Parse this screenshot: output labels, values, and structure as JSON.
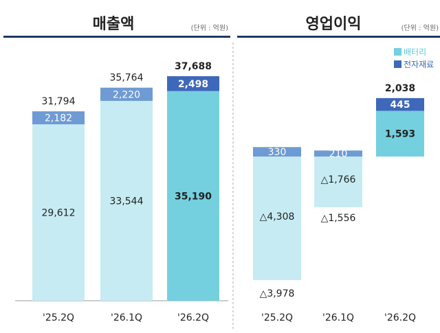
{
  "colors": {
    "battery_light": "#c6ebf3",
    "battery_highlight": "#74d0de",
    "materials_light": "#6e9bd4",
    "materials_dark": "#3e68b9",
    "title_rule": "#1f3864",
    "axis": "#999999",
    "divider": "#aaaaaa",
    "text": "#222222"
  },
  "legend": {
    "battery": "배터리",
    "materials": "전자재료"
  },
  "chart_data": [
    {
      "type": "bar",
      "title": "매출액",
      "unit": "(단위 : 억원)",
      "categories": [
        "'25.2Q",
        "'26.1Q",
        "'26.2Q"
      ],
      "series": [
        {
          "name": "배터리",
          "values": [
            29612,
            33544,
            35190
          ],
          "labels": [
            "29,612",
            "33,544",
            "35,190"
          ]
        },
        {
          "name": "전자재료",
          "values": [
            2182,
            2220,
            2498
          ],
          "labels": [
            "2,182",
            "2,220",
            "2,498"
          ]
        }
      ],
      "totals": [
        31794,
        35764,
        37688
      ],
      "total_labels": [
        "31,794",
        "35,764",
        "37,688"
      ],
      "ylim": [
        0,
        41000
      ],
      "highlight_index": 2
    },
    {
      "type": "bar",
      "title": "영업이익",
      "unit": "(단위 : 억원)",
      "categories": [
        "'25.2Q",
        "'26.1Q",
        "'26.2Q"
      ],
      "series": [
        {
          "name": "배터리",
          "values": [
            -4308,
            -1766,
            1593
          ],
          "labels": [
            "△4,308",
            "△1,766",
            "1,593"
          ]
        },
        {
          "name": "전자재료",
          "values": [
            330,
            210,
            445
          ],
          "labels": [
            "330",
            "210",
            "445"
          ]
        }
      ],
      "totals": [
        -3978,
        -1556,
        2038
      ],
      "total_labels": [
        "△3,978",
        "△1,556",
        "2,038"
      ],
      "ylim": [
        -4500,
        2600
      ],
      "highlight_index": 2
    }
  ]
}
